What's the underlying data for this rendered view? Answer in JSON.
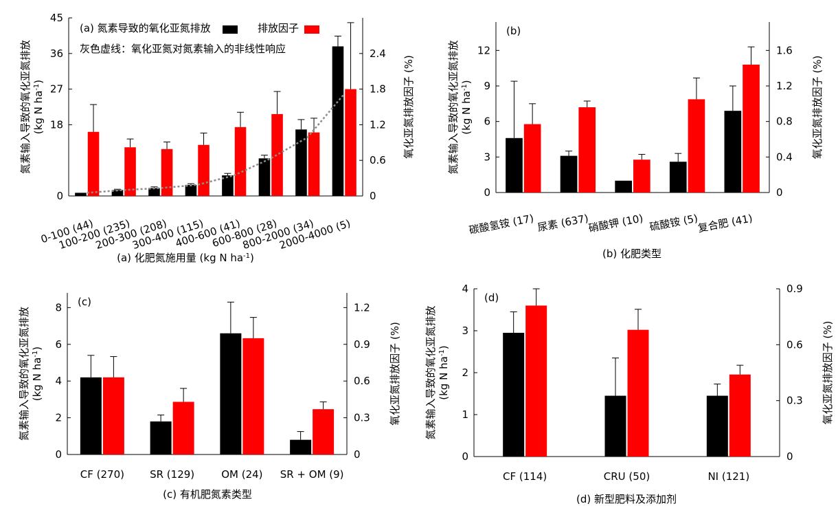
{
  "colors": {
    "direct": "#000000",
    "ef": "#ff0000",
    "trend": "#8c8c8c"
  },
  "chart_data": [
    {
      "type": "bar",
      "panel": "(a)",
      "caption_main": "(a) 化肥氮施用量 (kg N ha",
      "caption_sup": "-1",
      "caption_end": ")",
      "legend": {
        "series_direct": "(a) 氮素导致的氧化亚氮排放",
        "series_ef": "排放因子",
        "note": "灰色虚线：氧化亚氮对氮素输入的非线性响应"
      },
      "ylabel_left": "氮素输入导致的氧化亚氮排放",
      "ylabel_left_unit": "(kg N ha",
      "ylabel_left_sup": "-1",
      "ylabel_left_end": ")",
      "ylabel_right": "氧化亚氮排放因子 (%)",
      "ylim_left": [
        0,
        45
      ],
      "yticks_left": [
        "0",
        "18",
        "27",
        "36",
        "45"
      ],
      "ylim_right": [
        0,
        3.0
      ],
      "yticks_right": [
        "0",
        "0.6",
        "1.2",
        "1.8",
        "2.4"
      ],
      "categories": [
        "0-100 (44)",
        "100-200 (235)",
        "200-300 (208)",
        "300-400 (115)",
        "400-600 (41)",
        "600-800 (28)",
        "800-2000 (34)",
        "2000-4000 (5)"
      ],
      "series": [
        {
          "key": "direct",
          "axis": "left",
          "values": [
            0.8,
            1.5,
            2.0,
            2.8,
            5.2,
            9.5,
            16.8,
            37.8
          ],
          "err": [
            0,
            0.2,
            0.3,
            0.3,
            0.5,
            0.8,
            2.5,
            2.6
          ]
        },
        {
          "key": "ef",
          "axis": "right",
          "values": [
            1.08,
            0.82,
            0.79,
            0.86,
            1.16,
            1.38,
            1.07,
            1.8
          ],
          "err": [
            0.46,
            0.14,
            0.12,
            0.2,
            0.25,
            0.38,
            0.24,
            1.12
          ]
        }
      ],
      "trend": {
        "key": "trend",
        "axis": "left",
        "values": [
          0.8,
          1.5,
          2.0,
          2.8,
          5.2,
          9.5,
          14.8,
          25.8
        ]
      }
    },
    {
      "type": "bar",
      "panel": "(b)",
      "caption": "(b) 化肥类型",
      "ylabel_left": "氮素输入导致的氧化亚氮排放",
      "ylabel_left_unit": "(kg N ha",
      "ylabel_left_sup": "-1",
      "ylabel_left_end": ")",
      "ylabel_right": "氧化亚氮排放因子 (%)",
      "ylim_left": [
        0,
        14.4
      ],
      "yticks_left": [
        "0",
        "3",
        "6",
        "9",
        "12"
      ],
      "ylim_right": [
        0,
        1.92
      ],
      "yticks_right": [
        "0",
        "0.4",
        "0.8",
        "1.2",
        "1.6"
      ],
      "categories": [
        "碳酸氢铵 (17)",
        "尿素 (637)",
        "硝酸钾 (10)",
        "硫酸铵 (5)",
        "复合肥 (41)"
      ],
      "series": [
        {
          "key": "direct",
          "axis": "left",
          "values": [
            4.6,
            3.1,
            1.0,
            2.6,
            6.9
          ],
          "err": [
            4.8,
            0.4,
            0,
            0.7,
            2.1
          ]
        },
        {
          "key": "ef",
          "axis": "right",
          "values": [
            0.77,
            0.96,
            0.37,
            1.05,
            1.44
          ],
          "err": [
            0.23,
            0.07,
            0.06,
            0.24,
            0.2
          ]
        }
      ]
    },
    {
      "type": "bar",
      "panel": "(c)",
      "caption": "(c) 有机肥氮素类型",
      "ylabel_left": "氮素输入导致的氧化亚氮排放",
      "ylabel_left_unit": "(kg N ha",
      "ylabel_left_sup": "-1",
      "ylabel_left_end": ")",
      "ylabel_right": "氧化亚氮排放因子 (%)",
      "ylim_left": [
        0,
        8.8
      ],
      "yticks_left": [
        "0",
        "2",
        "4",
        "6",
        "8"
      ],
      "ylim_right": [
        0,
        1.32
      ],
      "yticks_right": [
        "0",
        "0.3",
        "0.6",
        "0.9",
        "1.2"
      ],
      "categories": [
        "CF (270)",
        "SR (129)",
        "OM (24)",
        "SR + OM (9)"
      ],
      "series": [
        {
          "key": "direct",
          "axis": "left",
          "values": [
            4.2,
            1.8,
            6.6,
            0.8
          ],
          "err": [
            1.2,
            0.35,
            1.7,
            0.45
          ]
        },
        {
          "key": "ef",
          "axis": "right",
          "values": [
            0.63,
            0.43,
            0.95,
            0.37
          ],
          "err": [
            0.17,
            0.11,
            0.17,
            0.06
          ]
        }
      ]
    },
    {
      "type": "bar",
      "panel": "(d)",
      "caption": "(d) 新型肥料及添加剂",
      "ylabel_left": "氮素输入导致的氧化亚氮排放",
      "ylabel_left_unit": "(kg N ha",
      "ylabel_left_sup": "-1",
      "ylabel_left_end": ")",
      "ylabel_right": "氧化亚氮排放因子 (%)",
      "ylim_left": [
        0,
        4.0
      ],
      "yticks_left": [
        "0",
        "1",
        "2",
        "3",
        "4"
      ],
      "ylim_right": [
        0,
        0.9
      ],
      "yticks_right": [
        "0",
        "0.3",
        "0.6",
        "0.9"
      ],
      "categories": [
        "CF (114)",
        "CRU (50)",
        "NI (121)"
      ],
      "series": [
        {
          "key": "direct",
          "axis": "left",
          "values": [
            2.95,
            1.45,
            1.45
          ],
          "err": [
            0.5,
            0.9,
            0.28
          ]
        },
        {
          "key": "ef",
          "axis": "right",
          "values": [
            0.81,
            0.68,
            0.44
          ],
          "err": [
            0.09,
            0.11,
            0.05
          ]
        }
      ]
    }
  ]
}
